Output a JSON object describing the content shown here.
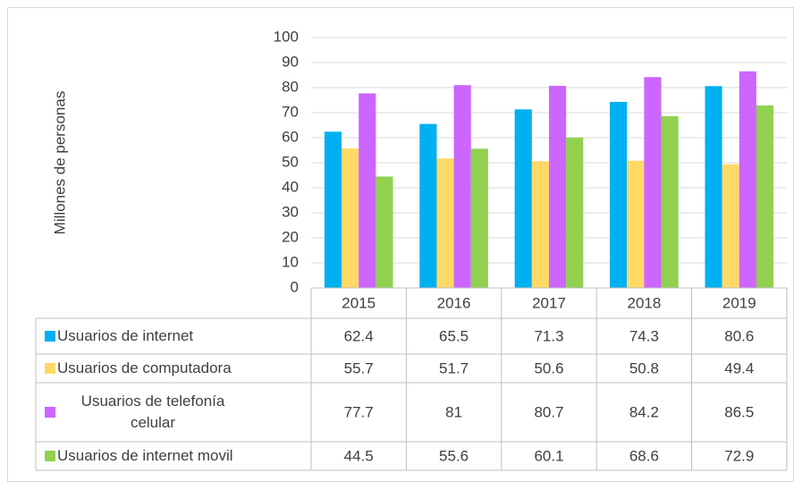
{
  "chart_data": {
    "type": "bar",
    "y_label": "Millones de personas",
    "categories": [
      "2015",
      "2016",
      "2017",
      "2018",
      "2019"
    ],
    "series": [
      {
        "name": "Usuarios de internet",
        "color": "#00b0f0",
        "values": [
          62.4,
          65.5,
          71.3,
          74.3,
          80.6
        ]
      },
      {
        "name": "Usuarios de computadora",
        "color": "#ffd966",
        "values": [
          55.7,
          51.7,
          50.6,
          50.8,
          49.4
        ]
      },
      {
        "name": "Usuarios de telefonía celular",
        "color": "#cc66ff",
        "values": [
          77.7,
          81,
          80.7,
          84.2,
          86.5
        ]
      },
      {
        "name": "Usuarios de internet movil",
        "color": "#92d050",
        "values": [
          44.5,
          55.6,
          60.1,
          68.6,
          72.9
        ]
      }
    ],
    "ylim": [
      0,
      100
    ],
    "yticks": [
      0,
      10,
      20,
      30,
      40,
      50,
      60,
      70,
      80,
      90,
      100
    ],
    "grid": true,
    "data_table": true
  }
}
